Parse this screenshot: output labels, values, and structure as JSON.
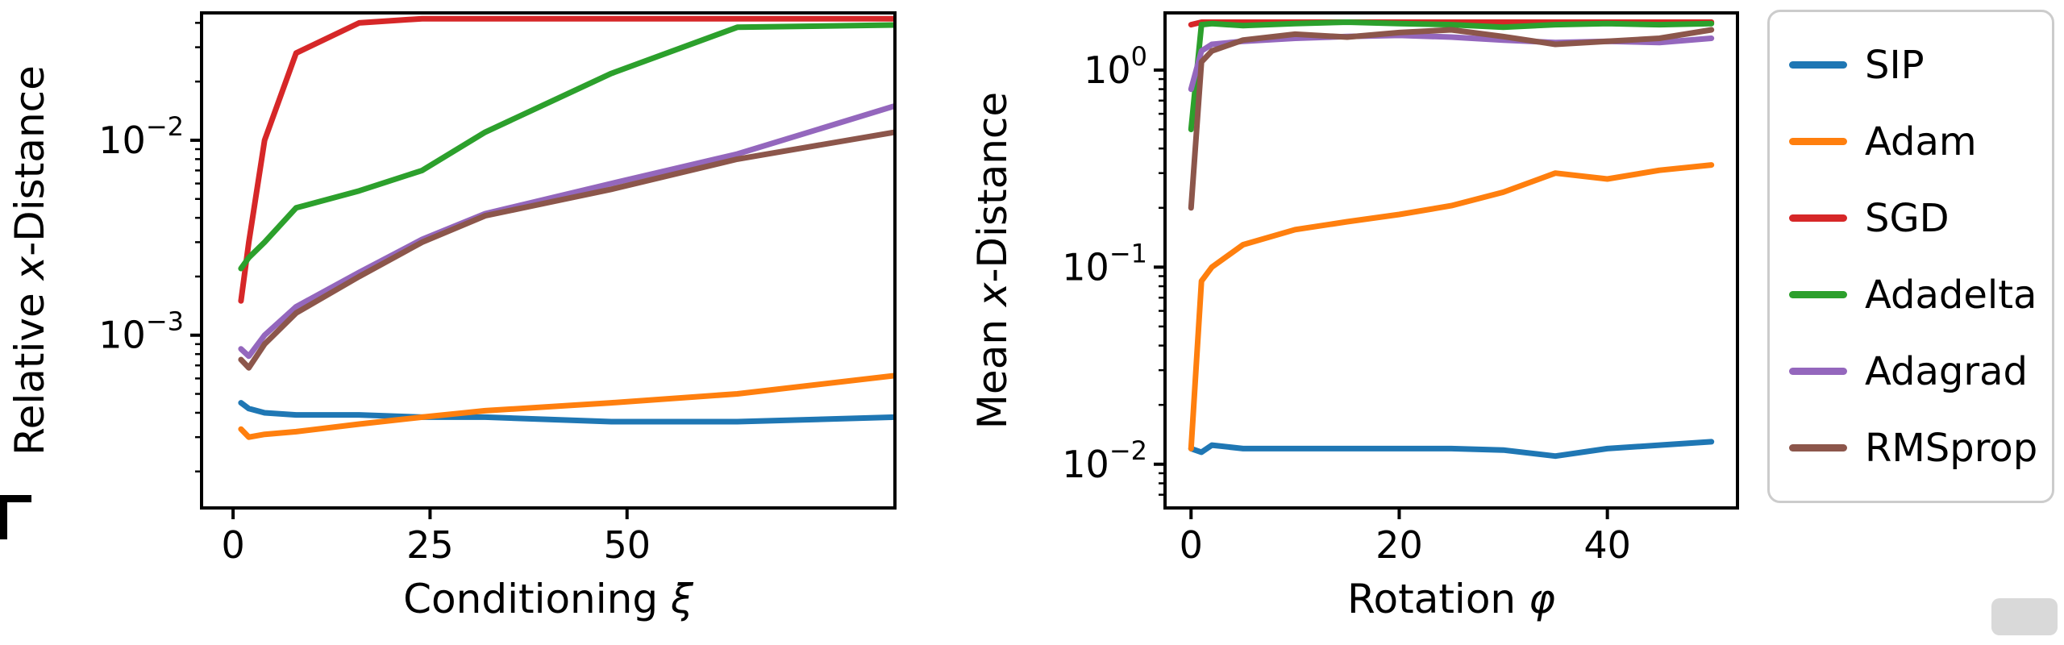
{
  "figure": {
    "background": "#ffffff"
  },
  "legend": {
    "entries": [
      {
        "label": "SIP",
        "color": "#1f77b4"
      },
      {
        "label": "Adam",
        "color": "#ff7f0e"
      },
      {
        "label": "SGD",
        "color": "#d62728"
      },
      {
        "label": "Adadelta",
        "color": "#2ca02c"
      },
      {
        "label": "Adagrad",
        "color": "#9467bd"
      },
      {
        "label": "RMSprop",
        "color": "#8c564b"
      }
    ]
  },
  "chart_data": [
    {
      "type": "line",
      "title": "",
      "xlabel": [
        {
          "text": "Conditioning ",
          "italic": false
        },
        {
          "text": "ξ",
          "italic": true
        }
      ],
      "ylabel": [
        {
          "text": "Relative ",
          "italic": false
        },
        {
          "text": "x",
          "italic": true
        },
        {
          "text": "-Distance",
          "italic": false
        }
      ],
      "yscale": "log",
      "grid": false,
      "x": [
        1,
        2,
        4,
        8,
        16,
        24,
        32,
        48,
        64,
        84
      ],
      "xlim": [
        -4,
        84
      ],
      "xticks": [
        0,
        25,
        50
      ],
      "ylim": [
        0.00013,
        0.045
      ],
      "ytick_exponents": [
        -3,
        -2
      ],
      "series": [
        {
          "name": "SIP",
          "color": "#1f77b4",
          "values": [
            0.00045,
            0.00042,
            0.0004,
            0.00039,
            0.00039,
            0.00038,
            0.00038,
            0.00036,
            0.00036,
            0.00038
          ]
        },
        {
          "name": "Adam",
          "color": "#ff7f0e",
          "values": [
            0.00033,
            0.0003,
            0.00031,
            0.00032,
            0.00035,
            0.00038,
            0.00041,
            0.00045,
            0.0005,
            0.00062
          ]
        },
        {
          "name": "SGD",
          "color": "#d62728",
          "values": [
            0.0015,
            0.003,
            0.01,
            0.028,
            0.04,
            0.042,
            0.042,
            0.042,
            0.042,
            0.042
          ]
        },
        {
          "name": "Adadelta",
          "color": "#2ca02c",
          "values": [
            0.0022,
            0.0025,
            0.003,
            0.0045,
            0.0055,
            0.007,
            0.011,
            0.022,
            0.038,
            0.039
          ]
        },
        {
          "name": "Adagrad",
          "color": "#9467bd",
          "values": [
            0.00085,
            0.00078,
            0.001,
            0.0014,
            0.0021,
            0.0031,
            0.0042,
            0.006,
            0.0085,
            0.015
          ]
        },
        {
          "name": "RMSprop",
          "color": "#8c564b",
          "values": [
            0.00075,
            0.00068,
            0.0009,
            0.0013,
            0.002,
            0.003,
            0.0041,
            0.0056,
            0.008,
            0.011
          ]
        }
      ]
    },
    {
      "type": "line",
      "title": "",
      "xlabel": [
        {
          "text": "Rotation ",
          "italic": false
        },
        {
          "text": "φ",
          "italic": true
        }
      ],
      "ylabel": [
        {
          "text": "Mean ",
          "italic": false
        },
        {
          "text": "x",
          "italic": true
        },
        {
          "text": "-Distance",
          "italic": false
        }
      ],
      "yscale": "log",
      "grid": false,
      "x": [
        0,
        1,
        2,
        5,
        10,
        15,
        20,
        25,
        30,
        35,
        40,
        45,
        50
      ],
      "xlim": [
        -2.5,
        52.5
      ],
      "xticks": [
        0,
        20,
        40
      ],
      "ylim": [
        0.006,
        1.95
      ],
      "ytick_exponents": [
        -2,
        -1,
        0
      ],
      "series": [
        {
          "name": "SIP",
          "color": "#1f77b4",
          "values": [
            0.012,
            0.0115,
            0.0125,
            0.012,
            0.012,
            0.012,
            0.012,
            0.012,
            0.0118,
            0.011,
            0.012,
            0.0125,
            0.013
          ]
        },
        {
          "name": "Adam",
          "color": "#ff7f0e",
          "values": [
            0.012,
            0.085,
            0.1,
            0.13,
            0.155,
            0.17,
            0.185,
            0.205,
            0.24,
            0.3,
            0.28,
            0.31,
            0.33
          ]
        },
        {
          "name": "SGD",
          "color": "#d62728",
          "values": [
            1.7,
            1.75,
            1.75,
            1.75,
            1.75,
            1.75,
            1.75,
            1.75,
            1.75,
            1.75,
            1.75,
            1.75,
            1.75
          ]
        },
        {
          "name": "Adadelta",
          "color": "#2ca02c",
          "values": [
            0.5,
            1.7,
            1.72,
            1.68,
            1.72,
            1.75,
            1.72,
            1.7,
            1.65,
            1.7,
            1.72,
            1.7,
            1.72
          ]
        },
        {
          "name": "Adagrad",
          "color": "#9467bd",
          "values": [
            0.8,
            1.25,
            1.35,
            1.4,
            1.45,
            1.48,
            1.5,
            1.47,
            1.42,
            1.38,
            1.4,
            1.38,
            1.45
          ]
        },
        {
          "name": "RMSprop",
          "color": "#8c564b",
          "values": [
            0.2,
            1.1,
            1.25,
            1.42,
            1.52,
            1.47,
            1.55,
            1.6,
            1.48,
            1.35,
            1.4,
            1.45,
            1.6
          ]
        }
      ]
    }
  ]
}
